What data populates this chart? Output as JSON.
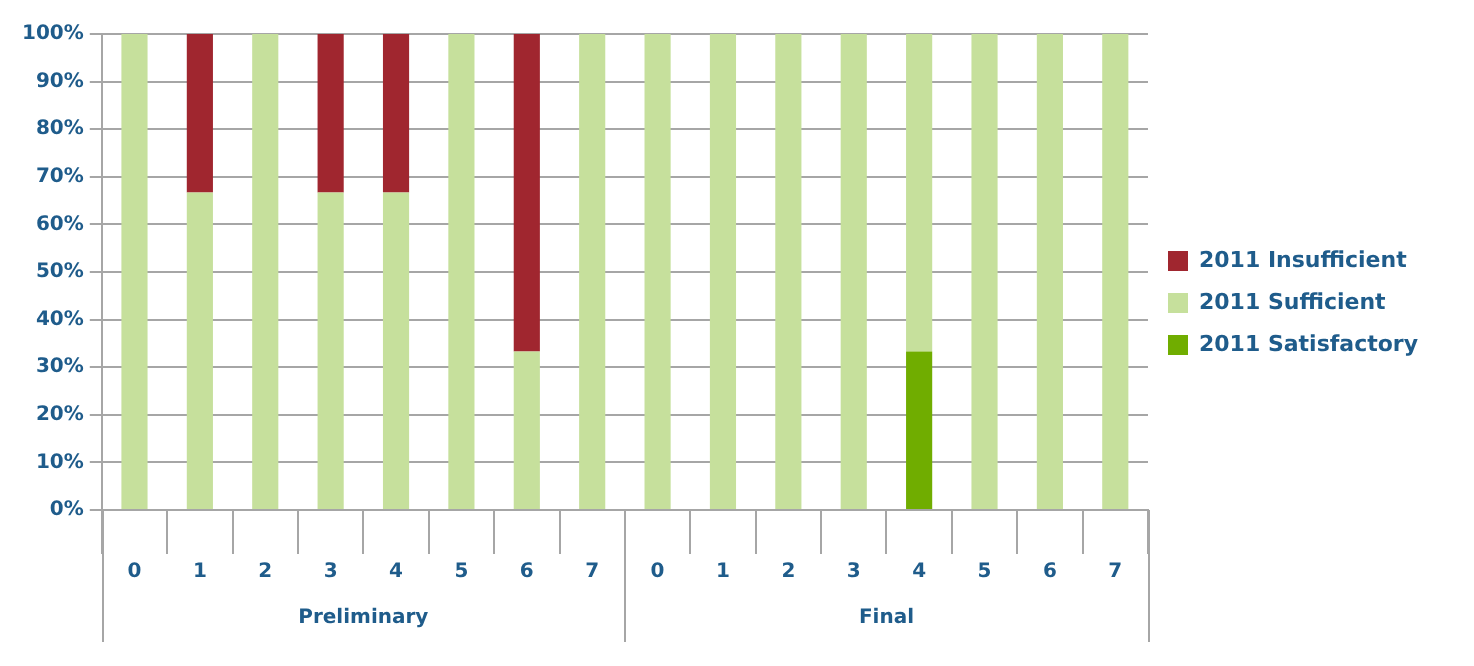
{
  "chart_data": {
    "type": "bar",
    "stacked": true,
    "categories": [
      "0",
      "1",
      "2",
      "3",
      "4",
      "5",
      "6",
      "7",
      "0",
      "1",
      "2",
      "3",
      "4",
      "5",
      "6",
      "7"
    ],
    "series": [
      {
        "name": "2011 Satisfactory",
        "color": "#70ad00",
        "values": [
          0,
          0,
          0,
          0,
          0,
          0,
          0,
          0,
          0,
          0,
          0,
          0,
          33.3,
          0,
          0,
          0
        ]
      },
      {
        "name": "2011 Sufficient",
        "color": "#c6e09c",
        "values": [
          100,
          66.7,
          100,
          66.7,
          66.7,
          100,
          33.3,
          100,
          100,
          100,
          100,
          100,
          66.7,
          100,
          100,
          100
        ]
      },
      {
        "name": "2011 Insufficient",
        "color": "#a0262f",
        "values": [
          0,
          33.3,
          0,
          33.3,
          33.3,
          0,
          66.7,
          0,
          0,
          0,
          0,
          0,
          0,
          0,
          0,
          0
        ]
      }
    ],
    "ylim": [
      0,
      100
    ],
    "yticks": [
      {
        "value": 0,
        "label": "0%"
      },
      {
        "value": 10,
        "label": "10%"
      },
      {
        "value": 20,
        "label": "20%"
      },
      {
        "value": 30,
        "label": "30%"
      },
      {
        "value": 40,
        "label": "40%"
      },
      {
        "value": 50,
        "label": "50%"
      },
      {
        "value": 60,
        "label": "60%"
      },
      {
        "value": 70,
        "label": "70%"
      },
      {
        "value": 80,
        "label": "80%"
      },
      {
        "value": 90,
        "label": "90%"
      },
      {
        "value": 100,
        "label": "100%"
      }
    ],
    "grid": "y",
    "legend": "right",
    "annotations": [
      "Preliminary",
      "Final"
    ]
  }
}
